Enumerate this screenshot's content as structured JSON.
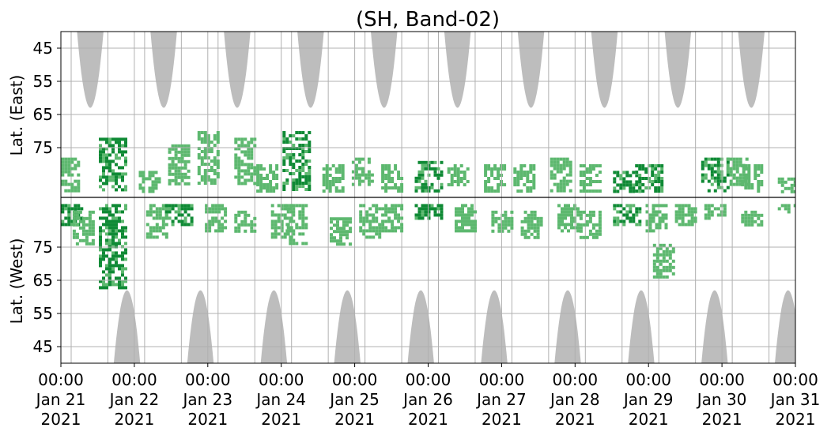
{
  "chart_data": {
    "type": "heatmap",
    "title": "(SH, Band-02)",
    "ylabel_east": "Lat. (East)",
    "ylabel_west": "Lat. (West)",
    "x_tick_labels": [
      [
        "00:00",
        "Jan 21",
        "2021"
      ],
      [
        "00:00",
        "Jan 22",
        "2021"
      ],
      [
        "00:00",
        "Jan 23",
        "2021"
      ],
      [
        "00:00",
        "Jan 24",
        "2021"
      ],
      [
        "00:00",
        "Jan 25",
        "2021"
      ],
      [
        "00:00",
        "Jan 26",
        "2021"
      ],
      [
        "00:00",
        "Jan 27",
        "2021"
      ],
      [
        "00:00",
        "Jan 28",
        "2021"
      ],
      [
        "00:00",
        "Jan 29",
        "2021"
      ],
      [
        "00:00",
        "Jan 30",
        "2021"
      ],
      [
        "00:00",
        "Jan 31",
        "2021"
      ]
    ],
    "y_tick_labels_east": [
      "45",
      "55",
      "65",
      "75"
    ],
    "y_tick_labels_west": [
      "75",
      "65",
      "55",
      "45"
    ],
    "x_range": [
      "2021-01-21 00:00",
      "2021-01-31 00:00"
    ],
    "lat_range": [
      40,
      90
    ],
    "grid": true,
    "colors": {
      "activity_light": "#5db86f",
      "activity_dark": "#0f8a35",
      "no_data": "#bdbdbd",
      "grid": "#b0b0b0"
    },
    "no_data_east": [
      {
        "center_day": 0.4,
        "half_width_days": 0.18,
        "min_lat": 63
      },
      {
        "center_day": 1.4,
        "half_width_days": 0.18,
        "min_lat": 63
      },
      {
        "center_day": 2.4,
        "half_width_days": 0.18,
        "min_lat": 63
      },
      {
        "center_day": 3.4,
        "half_width_days": 0.18,
        "min_lat": 63
      },
      {
        "center_day": 4.4,
        "half_width_days": 0.18,
        "min_lat": 63
      },
      {
        "center_day": 5.4,
        "half_width_days": 0.18,
        "min_lat": 63
      },
      {
        "center_day": 6.4,
        "half_width_days": 0.18,
        "min_lat": 63
      },
      {
        "center_day": 7.4,
        "half_width_days": 0.18,
        "min_lat": 63
      },
      {
        "center_day": 8.4,
        "half_width_days": 0.18,
        "min_lat": 63
      },
      {
        "center_day": 9.4,
        "half_width_days": 0.18,
        "min_lat": 63
      }
    ],
    "no_data_west": [
      {
        "center_day": 0.9,
        "half_width_days": 0.18,
        "min_lat": 62
      },
      {
        "center_day": 1.9,
        "half_width_days": 0.18,
        "min_lat": 62
      },
      {
        "center_day": 2.9,
        "half_width_days": 0.18,
        "min_lat": 62
      },
      {
        "center_day": 3.9,
        "half_width_days": 0.18,
        "min_lat": 62
      },
      {
        "center_day": 4.9,
        "half_width_days": 0.18,
        "min_lat": 62
      },
      {
        "center_day": 5.9,
        "half_width_days": 0.18,
        "min_lat": 62
      },
      {
        "center_day": 6.9,
        "half_width_days": 0.18,
        "min_lat": 62
      },
      {
        "center_day": 7.9,
        "half_width_days": 0.18,
        "min_lat": 62
      },
      {
        "center_day": 8.9,
        "half_width_days": 0.18,
        "min_lat": 62
      },
      {
        "center_day": 9.9,
        "half_width_days": 0.18,
        "min_lat": 62
      }
    ],
    "activity_clusters": [
      {
        "day": 0.1,
        "side": "east",
        "lat_from": 78,
        "lat_to": 88,
        "intensity": "light"
      },
      {
        "day": 0.1,
        "side": "west",
        "lat_from": 82,
        "lat_to": 88,
        "intensity": "dark"
      },
      {
        "day": 0.3,
        "side": "west",
        "lat_from": 76,
        "lat_to": 86,
        "intensity": "light"
      },
      {
        "day": 0.7,
        "side": "east",
        "lat_from": 72,
        "lat_to": 88,
        "intensity": "dark"
      },
      {
        "day": 0.7,
        "side": "west",
        "lat_from": 63,
        "lat_to": 88,
        "intensity": "dark"
      },
      {
        "day": 1.2,
        "side": "east",
        "lat_from": 82,
        "lat_to": 88,
        "intensity": "light"
      },
      {
        "day": 1.3,
        "side": "west",
        "lat_from": 78,
        "lat_to": 88,
        "intensity": "light"
      },
      {
        "day": 1.6,
        "side": "east",
        "lat_from": 74,
        "lat_to": 86,
        "intensity": "light"
      },
      {
        "day": 1.6,
        "side": "west",
        "lat_from": 82,
        "lat_to": 88,
        "intensity": "dark"
      },
      {
        "day": 2.0,
        "side": "east",
        "lat_from": 70,
        "lat_to": 86,
        "intensity": "light"
      },
      {
        "day": 2.1,
        "side": "west",
        "lat_from": 80,
        "lat_to": 88,
        "intensity": "light"
      },
      {
        "day": 2.5,
        "side": "east",
        "lat_from": 72,
        "lat_to": 86,
        "intensity": "light"
      },
      {
        "day": 2.5,
        "side": "west",
        "lat_from": 80,
        "lat_to": 86,
        "intensity": "light"
      },
      {
        "day": 2.8,
        "side": "east",
        "lat_from": 80,
        "lat_to": 88,
        "intensity": "light"
      },
      {
        "day": 3.0,
        "side": "west",
        "lat_from": 78,
        "lat_to": 88,
        "intensity": "light"
      },
      {
        "day": 3.2,
        "side": "east",
        "lat_from": 70,
        "lat_to": 88,
        "intensity": "dark"
      },
      {
        "day": 3.2,
        "side": "west",
        "lat_from": 76,
        "lat_to": 88,
        "intensity": "light"
      },
      {
        "day": 3.7,
        "side": "east",
        "lat_from": 80,
        "lat_to": 88,
        "intensity": "light"
      },
      {
        "day": 3.8,
        "side": "west",
        "lat_from": 76,
        "lat_to": 84,
        "intensity": "light"
      },
      {
        "day": 4.1,
        "side": "east",
        "lat_from": 78,
        "lat_to": 86,
        "intensity": "light"
      },
      {
        "day": 4.2,
        "side": "west",
        "lat_from": 78,
        "lat_to": 88,
        "intensity": "light"
      },
      {
        "day": 4.5,
        "side": "east",
        "lat_from": 80,
        "lat_to": 88,
        "intensity": "light"
      },
      {
        "day": 4.5,
        "side": "west",
        "lat_from": 80,
        "lat_to": 88,
        "intensity": "light"
      },
      {
        "day": 5.0,
        "side": "east",
        "lat_from": 79,
        "lat_to": 88,
        "intensity": "dark"
      },
      {
        "day": 5.0,
        "side": "west",
        "lat_from": 84,
        "lat_to": 88,
        "intensity": "dark"
      },
      {
        "day": 5.4,
        "side": "east",
        "lat_from": 80,
        "lat_to": 86,
        "intensity": "light"
      },
      {
        "day": 5.5,
        "side": "west",
        "lat_from": 80,
        "lat_to": 88,
        "intensity": "light"
      },
      {
        "day": 5.9,
        "side": "east",
        "lat_from": 80,
        "lat_to": 88,
        "intensity": "light"
      },
      {
        "day": 6.0,
        "side": "west",
        "lat_from": 80,
        "lat_to": 86,
        "intensity": "light"
      },
      {
        "day": 6.3,
        "side": "east",
        "lat_from": 80,
        "lat_to": 88,
        "intensity": "light"
      },
      {
        "day": 6.4,
        "side": "west",
        "lat_from": 78,
        "lat_to": 86,
        "intensity": "light"
      },
      {
        "day": 6.8,
        "side": "east",
        "lat_from": 78,
        "lat_to": 88,
        "intensity": "light"
      },
      {
        "day": 6.9,
        "side": "west",
        "lat_from": 80,
        "lat_to": 88,
        "intensity": "light"
      },
      {
        "day": 7.2,
        "side": "east",
        "lat_from": 80,
        "lat_to": 88,
        "intensity": "light"
      },
      {
        "day": 7.2,
        "side": "west",
        "lat_from": 78,
        "lat_to": 86,
        "intensity": "light"
      },
      {
        "day": 7.7,
        "side": "east",
        "lat_from": 82,
        "lat_to": 88,
        "intensity": "dark"
      },
      {
        "day": 7.7,
        "side": "west",
        "lat_from": 82,
        "lat_to": 88,
        "intensity": "dark"
      },
      {
        "day": 8.0,
        "side": "east",
        "lat_from": 80,
        "lat_to": 88,
        "intensity": "dark"
      },
      {
        "day": 8.1,
        "side": "west",
        "lat_from": 80,
        "lat_to": 88,
        "intensity": "light"
      },
      {
        "day": 8.2,
        "side": "west",
        "lat_from": 66,
        "lat_to": 76,
        "intensity": "light"
      },
      {
        "day": 8.5,
        "side": "west",
        "lat_from": 82,
        "lat_to": 88,
        "intensity": "light"
      },
      {
        "day": 8.9,
        "side": "east",
        "lat_from": 78,
        "lat_to": 88,
        "intensity": "dark"
      },
      {
        "day": 8.9,
        "side": "west",
        "lat_from": 84,
        "lat_to": 88,
        "intensity": "light"
      },
      {
        "day": 9.2,
        "side": "east",
        "lat_from": 78,
        "lat_to": 86,
        "intensity": "light"
      },
      {
        "day": 9.4,
        "side": "east",
        "lat_from": 80,
        "lat_to": 88,
        "intensity": "light"
      },
      {
        "day": 9.4,
        "side": "west",
        "lat_from": 82,
        "lat_to": 86,
        "intensity": "light"
      },
      {
        "day": 9.9,
        "side": "east",
        "lat_from": 84,
        "lat_to": 88,
        "intensity": "light"
      },
      {
        "day": 9.9,
        "side": "west",
        "lat_from": 86,
        "lat_to": 88,
        "intensity": "light"
      }
    ]
  }
}
